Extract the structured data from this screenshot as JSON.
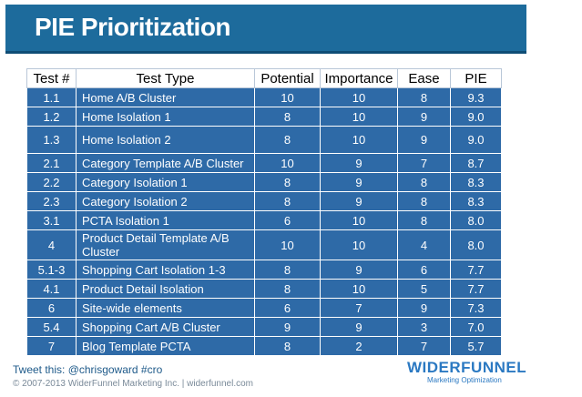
{
  "header": {
    "title": "PIE Prioritization"
  },
  "table": {
    "columns": [
      "Test #",
      "Test Type",
      "Potential",
      "Importance",
      "Ease",
      "PIE"
    ],
    "rows": [
      [
        "1.1",
        "Home A/B Cluster",
        "10",
        "10",
        "8",
        "9.3"
      ],
      [
        "1.2",
        "Home Isolation 1",
        "8",
        "10",
        "9",
        "9.0"
      ],
      [
        "1.3",
        "Home Isolation 2",
        "8",
        "10",
        "9",
        "9.0"
      ],
      [
        "2.1",
        "Category Template A/B Cluster",
        "10",
        "9",
        "7",
        "8.7"
      ],
      [
        "2.2",
        "Category Isolation 1",
        "8",
        "9",
        "8",
        "8.3"
      ],
      [
        "2.3",
        "Category Isolation 2",
        "8",
        "9",
        "8",
        "8.3"
      ],
      [
        "3.1",
        "PCTA Isolation 1",
        "6",
        "10",
        "8",
        "8.0"
      ],
      [
        "4",
        "Product Detail Template A/B Cluster",
        "10",
        "10",
        "4",
        "8.0"
      ],
      [
        "5.1-3",
        "Shopping Cart Isolation 1-3",
        "8",
        "9",
        "6",
        "7.7"
      ],
      [
        "4.1",
        "Product Detail Isolation",
        "8",
        "10",
        "5",
        "7.7"
      ],
      [
        "6",
        "Site-wide elements",
        "6",
        "7",
        "9",
        "7.3"
      ],
      [
        "5.4",
        "Shopping Cart A/B Cluster",
        "9",
        "9",
        "3",
        "7.0"
      ],
      [
        "7",
        "Blog Template PCTA",
        "8",
        "2",
        "7",
        "5.7"
      ]
    ]
  },
  "footer": {
    "tweet": "Tweet this: @chrisgoward #cro",
    "copyright": "© 2007-2013 WiderFunnel Marketing Inc. | widerfunnel.com"
  },
  "logo": {
    "name": "WIDERFUNNEL",
    "tagline": "Marketing Optimization"
  },
  "colors": {
    "banner": "#1d6b9c",
    "table_cell": "#2e6aa7",
    "logo": "#2b79c2"
  }
}
